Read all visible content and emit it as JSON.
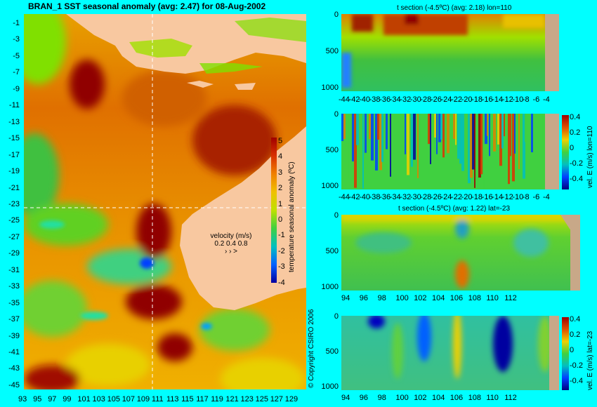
{
  "map": {
    "title": "BRAN_1  SST seasonal anomaly (avg: 2.47) for 08-Aug-2002",
    "lat_ticks": [
      "-1",
      "-3",
      "-5",
      "-7",
      "-9",
      "-11",
      "-13",
      "-15",
      "-17",
      "-19",
      "-21",
      "-23",
      "-25",
      "-27",
      "-29",
      "-31",
      "-33",
      "-35",
      "-37",
      "-39",
      "-41",
      "-43",
      "-45"
    ],
    "lon_ticks": [
      "93",
      "95",
      "97",
      "99",
      "101",
      "103",
      "105",
      "107",
      "109",
      "111",
      "113",
      "115",
      "117",
      "119",
      "121",
      "123",
      "125",
      "127",
      "129"
    ],
    "colorbar": {
      "label": "temperature seasonal anomaly (ºC)",
      "ticks": [
        "5",
        "4",
        "3",
        "2",
        "1",
        "0",
        "-1",
        "-2",
        "-3",
        "-4"
      ],
      "range": [
        -4,
        5
      ]
    },
    "velocity_legend": {
      "title": "velocity (m/s)",
      "values": "0.2 0.4 0.8",
      "arrows": "›    ›    >"
    },
    "copyright": "© Copyright CSIRO 2006",
    "colors": {
      "land": "#f8c8a0",
      "warm": "#c84000",
      "hot": "#800000",
      "cool": "#00c060",
      "neutral": "#f0e000"
    }
  },
  "panels": [
    {
      "title": "t section (-4.5ºC) (avg: 2.18) lon=110",
      "y_ticks": [
        "0",
        "500",
        "1000"
      ],
      "x_ticks": [
        "-44",
        "-42",
        "-40",
        "-38",
        "-36",
        "-34",
        "-32",
        "-30",
        "-28",
        "-26",
        "-24",
        "-22",
        "-20",
        "-18",
        "-16",
        "-14",
        "-12",
        "-10",
        "-8",
        "-6",
        "-4"
      ]
    },
    {
      "title": "",
      "y_ticks": [
        "0",
        "500",
        "1000"
      ],
      "x_ticks": [
        "-44",
        "-42",
        "-40",
        "-38",
        "-36",
        "-34",
        "-32",
        "-30",
        "-28",
        "-26",
        "-24",
        "-22",
        "-20",
        "-18",
        "-16",
        "-14",
        "-12",
        "-10",
        "-8",
        "-6",
        "-4"
      ],
      "colorbar_label": "vel. E (m/s) lon=110",
      "colorbar_ticks": [
        "0.4",
        "0.2",
        "0",
        "-0.2",
        "-0.4"
      ]
    },
    {
      "title": "t section (-4.5ºC) (avg: 1.22) lat=-23",
      "y_ticks": [
        "0",
        "500",
        "1000"
      ],
      "x_ticks": [
        "94",
        "96",
        "98",
        "100",
        "102",
        "104",
        "106",
        "108",
        "110",
        "112"
      ]
    },
    {
      "title": "",
      "y_ticks": [
        "0",
        "500",
        "1000"
      ],
      "x_ticks": [
        "94",
        "96",
        "98",
        "100",
        "102",
        "104",
        "106",
        "108",
        "110",
        "112"
      ],
      "colorbar_label": "vel. E (m/s) lat=-23",
      "colorbar_ticks": [
        "0.4",
        "0.2",
        "0",
        "-0.2",
        "-0.4"
      ]
    }
  ]
}
